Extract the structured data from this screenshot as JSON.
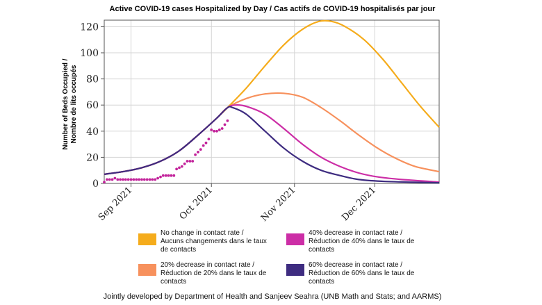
{
  "chart_data": {
    "type": "line",
    "title": "Active COVID-19 cases Hospitalized by Day / Cas actifs de COVID-19 hospitalisés par jour",
    "ylabel_lines": [
      "Number of Beds Occupied /",
      "Nombre de lits occupés"
    ],
    "xlabel": "",
    "ylim": [
      0,
      125
    ],
    "yticks": [
      0,
      20,
      40,
      60,
      80,
      100,
      120
    ],
    "xlim": [
      "2021-08-22",
      "2021-12-25"
    ],
    "xticks": [
      {
        "date": "2021-09-01",
        "label": "Sep 2021"
      },
      {
        "date": "2021-10-01",
        "label": "Oct 2021"
      },
      {
        "date": "2021-11-01",
        "label": "Nov 2021"
      },
      {
        "date": "2021-12-01",
        "label": "Dec 2021"
      }
    ],
    "grid": true,
    "legend_position": "below",
    "series": [
      {
        "name": "No change in contact rate / Aucuns changements dans le taux de contacts",
        "color": "#f5ac1c",
        "points": [
          [
            "2021-08-22",
            7
          ],
          [
            "2021-08-29",
            9
          ],
          [
            "2021-09-05",
            12
          ],
          [
            "2021-09-12",
            17
          ],
          [
            "2021-09-19",
            25
          ],
          [
            "2021-09-26",
            37
          ],
          [
            "2021-10-03",
            50
          ],
          [
            "2021-10-07",
            58
          ],
          [
            "2021-10-14",
            73
          ],
          [
            "2021-10-21",
            90
          ],
          [
            "2021-10-28",
            106
          ],
          [
            "2021-11-04",
            118
          ],
          [
            "2021-11-10",
            124
          ],
          [
            "2021-11-15",
            124
          ],
          [
            "2021-11-20",
            120
          ],
          [
            "2021-11-27",
            110
          ],
          [
            "2021-12-04",
            95
          ],
          [
            "2021-12-11",
            77
          ],
          [
            "2021-12-18",
            59
          ],
          [
            "2021-12-25",
            43
          ]
        ]
      },
      {
        "name": "20% decrease in contact rate / Réduction de 20% dans le taux de contacts",
        "color": "#f7915d",
        "points": [
          [
            "2021-08-22",
            7
          ],
          [
            "2021-08-29",
            9
          ],
          [
            "2021-09-05",
            12
          ],
          [
            "2021-09-12",
            17
          ],
          [
            "2021-09-19",
            25
          ],
          [
            "2021-09-26",
            37
          ],
          [
            "2021-10-03",
            50
          ],
          [
            "2021-10-07",
            58
          ],
          [
            "2021-10-14",
            65
          ],
          [
            "2021-10-21",
            68.5
          ],
          [
            "2021-10-28",
            69
          ],
          [
            "2021-11-04",
            66
          ],
          [
            "2021-11-11",
            58
          ],
          [
            "2021-11-18",
            48
          ],
          [
            "2021-11-25",
            37
          ],
          [
            "2021-12-02",
            27
          ],
          [
            "2021-12-09",
            19
          ],
          [
            "2021-12-16",
            13
          ],
          [
            "2021-12-25",
            9
          ]
        ]
      },
      {
        "name": "40% decrease in contact rate / Réduction de 40% dans le taux de contacts",
        "color": "#cc2ea6",
        "points": [
          [
            "2021-08-22",
            7
          ],
          [
            "2021-08-29",
            9
          ],
          [
            "2021-09-05",
            12
          ],
          [
            "2021-09-12",
            17
          ],
          [
            "2021-09-19",
            25
          ],
          [
            "2021-09-26",
            37
          ],
          [
            "2021-10-03",
            50
          ],
          [
            "2021-10-07",
            58
          ],
          [
            "2021-10-10",
            60
          ],
          [
            "2021-10-14",
            59
          ],
          [
            "2021-10-21",
            53
          ],
          [
            "2021-10-28",
            42
          ],
          [
            "2021-11-04",
            30
          ],
          [
            "2021-11-11",
            20
          ],
          [
            "2021-11-18",
            13
          ],
          [
            "2021-11-25",
            8
          ],
          [
            "2021-12-02",
            5
          ],
          [
            "2021-12-11",
            3
          ],
          [
            "2021-12-25",
            1
          ]
        ]
      },
      {
        "name": "60% decrease in contact rate / Réduction de 60% dans le taux de contacts",
        "color": "#3e2c80",
        "points": [
          [
            "2021-08-22",
            7
          ],
          [
            "2021-08-29",
            9
          ],
          [
            "2021-09-05",
            12
          ],
          [
            "2021-09-12",
            17
          ],
          [
            "2021-09-19",
            25
          ],
          [
            "2021-09-26",
            37
          ],
          [
            "2021-10-03",
            50
          ],
          [
            "2021-10-07",
            58
          ],
          [
            "2021-10-09",
            58
          ],
          [
            "2021-10-14",
            53
          ],
          [
            "2021-10-21",
            40
          ],
          [
            "2021-10-28",
            27
          ],
          [
            "2021-11-04",
            17
          ],
          [
            "2021-11-11",
            10
          ],
          [
            "2021-11-18",
            6
          ],
          [
            "2021-11-25",
            3
          ],
          [
            "2021-12-05",
            1.5
          ],
          [
            "2021-12-25",
            0.5
          ]
        ]
      }
    ],
    "observed": {
      "color": "#c2229a",
      "points": [
        [
          "2021-08-22",
          1
        ],
        [
          "2021-08-23",
          3
        ],
        [
          "2021-08-24",
          3
        ],
        [
          "2021-08-25",
          3
        ],
        [
          "2021-08-26",
          4
        ],
        [
          "2021-08-27",
          3
        ],
        [
          "2021-08-28",
          3
        ],
        [
          "2021-08-29",
          3
        ],
        [
          "2021-08-30",
          3
        ],
        [
          "2021-08-31",
          3
        ],
        [
          "2021-09-01",
          3
        ],
        [
          "2021-09-02",
          3
        ],
        [
          "2021-09-03",
          3
        ],
        [
          "2021-09-04",
          3
        ],
        [
          "2021-09-05",
          3
        ],
        [
          "2021-09-06",
          3
        ],
        [
          "2021-09-07",
          3
        ],
        [
          "2021-09-08",
          3
        ],
        [
          "2021-09-09",
          3
        ],
        [
          "2021-09-10",
          3
        ],
        [
          "2021-09-11",
          4
        ],
        [
          "2021-09-12",
          5
        ],
        [
          "2021-09-13",
          6
        ],
        [
          "2021-09-14",
          6
        ],
        [
          "2021-09-15",
          6
        ],
        [
          "2021-09-16",
          6
        ],
        [
          "2021-09-17",
          6
        ],
        [
          "2021-09-18",
          11
        ],
        [
          "2021-09-19",
          12
        ],
        [
          "2021-09-20",
          13
        ],
        [
          "2021-09-21",
          15
        ],
        [
          "2021-09-22",
          17
        ],
        [
          "2021-09-23",
          17
        ],
        [
          "2021-09-24",
          17
        ],
        [
          "2021-09-25",
          22
        ],
        [
          "2021-09-26",
          24
        ],
        [
          "2021-09-27",
          26
        ],
        [
          "2021-09-28",
          29
        ],
        [
          "2021-09-29",
          31
        ],
        [
          "2021-09-30",
          34
        ],
        [
          "2021-10-01",
          41
        ],
        [
          "2021-10-02",
          40
        ],
        [
          "2021-10-03",
          40
        ],
        [
          "2021-10-04",
          41
        ],
        [
          "2021-10-05",
          42
        ],
        [
          "2021-10-06",
          45
        ],
        [
          "2021-10-07",
          48
        ]
      ]
    }
  },
  "legend": [
    {
      "line1": "No change in contact rate /",
      "line2": "Aucuns changements dans le taux",
      "line3": "de contacts",
      "color": "#f5ac1c"
    },
    {
      "line1": "40% decrease in contact rate /",
      "line2": "Réduction de 40% dans le taux de",
      "line3": "contacts",
      "color": "#cc2ea6"
    },
    {
      "line1": "20% decrease in contact rate /",
      "line2": "Réduction de 20% dans le taux de",
      "line3": "contacts",
      "color": "#f7915d"
    },
    {
      "line1": "60% decrease in contact rate /",
      "line2": "Réduction de 60% dans le taux de",
      "line3": "contacts",
      "color": "#3e2c80"
    }
  ],
  "footer": "Jointly developed by Department of Health and Sanjeev Seahra (UNB Math and Stats; and AARMS)"
}
